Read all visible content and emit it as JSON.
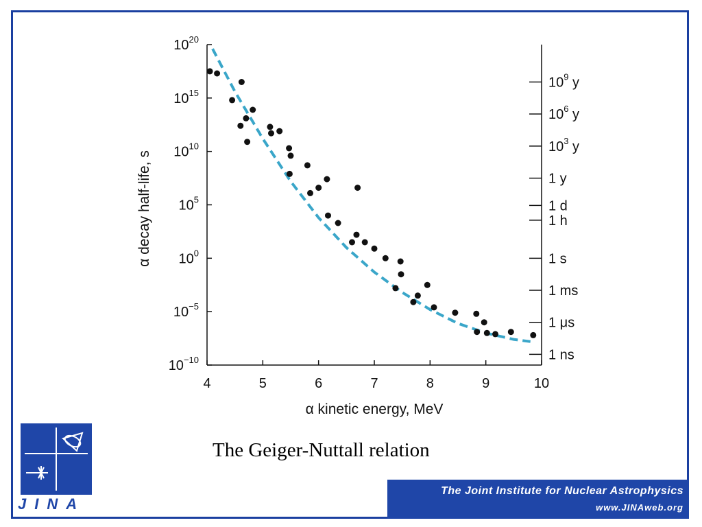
{
  "caption": "The Geiger-Nuttall relation",
  "footer": {
    "title": "The Joint Institute for Nuclear Astrophysics",
    "url": "www.JINAweb.org"
  },
  "logo": {
    "text": "JINA"
  },
  "colors": {
    "frame": "#1a3fa0",
    "brand": "#1f46a8",
    "fit_line": "#3aa6c9",
    "points": "#111111"
  },
  "chart_data": {
    "type": "scatter",
    "xlabel": "α kinetic energy, MeV",
    "ylabel": "α decay half-life, s",
    "y_scale": "log10",
    "xlim": [
      4,
      10
    ],
    "ylim_log10": [
      -10,
      20
    ],
    "x_ticks": [
      4,
      5,
      6,
      7,
      8,
      9,
      10
    ],
    "y_ticks_log10": [
      -10,
      -5,
      0,
      5,
      10,
      15,
      20
    ],
    "y_tick_base": "10",
    "right_axis_ticks": [
      {
        "label": "10",
        "sup": "9",
        "unit": " y",
        "log10_s": 16.5
      },
      {
        "label": "10",
        "sup": "6",
        "unit": " y",
        "log10_s": 13.5
      },
      {
        "label": "10",
        "sup": "3",
        "unit": " y",
        "log10_s": 10.5
      },
      {
        "label": "1 y",
        "sup": "",
        "unit": "",
        "log10_s": 7.5
      },
      {
        "label": "1 d",
        "sup": "",
        "unit": "",
        "log10_s": 4.94
      },
      {
        "label": "1 h",
        "sup": "",
        "unit": "",
        "log10_s": 3.56
      },
      {
        "label": "1 s",
        "sup": "",
        "unit": "",
        "log10_s": 0
      },
      {
        "label": "1 ms",
        "sup": "",
        "unit": "",
        "log10_s": -3
      },
      {
        "label": "1 μs",
        "sup": "",
        "unit": "",
        "log10_s": -6
      },
      {
        "label": "1 ns",
        "sup": "",
        "unit": "",
        "log10_s": -9
      }
    ],
    "series": [
      {
        "points": [
          [
            4.05,
            17.5
          ],
          [
            4.18,
            17.3
          ],
          [
            4.45,
            14.8
          ],
          [
            4.6,
            12.4
          ],
          [
            4.62,
            16.5
          ],
          [
            4.7,
            13.1
          ],
          [
            4.72,
            10.9
          ],
          [
            4.82,
            13.9
          ],
          [
            5.13,
            12.3
          ],
          [
            5.15,
            11.7
          ],
          [
            5.3,
            11.9
          ],
          [
            5.47,
            10.3
          ],
          [
            5.5,
            9.6
          ],
          [
            5.48,
            7.9
          ],
          [
            5.8,
            8.7
          ],
          [
            5.85,
            6.1
          ],
          [
            6.0,
            6.6
          ],
          [
            6.15,
            7.4
          ],
          [
            6.17,
            4.0
          ],
          [
            6.35,
            3.3
          ],
          [
            6.6,
            1.5
          ],
          [
            6.68,
            2.2
          ],
          [
            6.7,
            6.6
          ],
          [
            6.83,
            1.5
          ],
          [
            7.0,
            0.9
          ],
          [
            7.2,
            0.0
          ],
          [
            7.38,
            -2.8
          ],
          [
            7.47,
            -0.3
          ],
          [
            7.48,
            -1.5
          ],
          [
            7.7,
            -4.1
          ],
          [
            7.78,
            -3.5
          ],
          [
            7.95,
            -2.5
          ],
          [
            8.07,
            -4.6
          ],
          [
            8.45,
            -5.1
          ],
          [
            8.83,
            -5.2
          ],
          [
            8.84,
            -6.9
          ],
          [
            8.97,
            -6.0
          ],
          [
            9.02,
            -7.0
          ],
          [
            9.17,
            -7.1
          ],
          [
            9.45,
            -6.9
          ],
          [
            9.85,
            -7.2
          ]
        ]
      },
      {
        "type": "line",
        "style": "dashed",
        "x": [
          4.1,
          4.5,
          5.0,
          5.5,
          6.0,
          6.5,
          7.0,
          7.5,
          8.0,
          8.5,
          9.0,
          9.5,
          9.8
        ],
        "y": [
          19.6,
          15.6,
          11.2,
          7.2,
          3.8,
          1.0,
          -1.3,
          -3.2,
          -4.8,
          -6.1,
          -7.0,
          -7.6,
          -7.8
        ]
      }
    ]
  }
}
